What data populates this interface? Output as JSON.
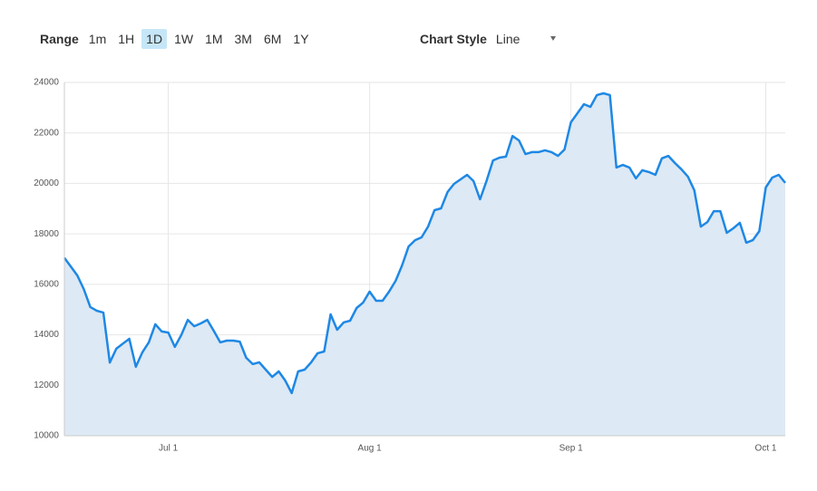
{
  "controls": {
    "range_label": "Range",
    "ranges": [
      "1m",
      "1H",
      "1D",
      "1W",
      "1M",
      "3M",
      "6M",
      "1Y"
    ],
    "chart_style_label": "Chart Style",
    "chart_style": "Line"
  },
  "chart_data": {
    "type": "area",
    "color": "#1e88e5",
    "fill": "#dde9f4",
    "grid": true,
    "x": [
      "Jun 15",
      "Jun 16",
      "Jun 17",
      "Jun 18",
      "Jun 19",
      "Jun 20",
      "Jun 21",
      "Jun 22",
      "Jun 23",
      "Jun 24",
      "Jun 25",
      "Jun 26",
      "Jun 27",
      "Jun 28",
      "Jun 29",
      "Jun 30",
      "Jul 1",
      "Jul 2",
      "Jul 3",
      "Jul 4",
      "Jul 5",
      "Jul 6",
      "Jul 7",
      "Jul 8",
      "Jul 9",
      "Jul 10",
      "Jul 11",
      "Jul 12",
      "Jul 13",
      "Jul 14",
      "Jul 15",
      "Jul 16",
      "Jul 17",
      "Jul 18",
      "Jul 19",
      "Jul 20",
      "Jul 21",
      "Jul 22",
      "Jul 23",
      "Jul 24",
      "Jul 25",
      "Jul 26",
      "Jul 27",
      "Jul 28",
      "Jul 29",
      "Jul 30",
      "Jul 31",
      "Aug 1",
      "Aug 2",
      "Aug 3",
      "Aug 4",
      "Aug 5",
      "Aug 6",
      "Aug 7",
      "Aug 8",
      "Aug 9",
      "Aug 10",
      "Aug 11",
      "Aug 12",
      "Aug 13",
      "Aug 14",
      "Aug 15",
      "Aug 16",
      "Aug 17",
      "Aug 18",
      "Aug 19",
      "Aug 20",
      "Aug 21",
      "Aug 22",
      "Aug 23",
      "Aug 24",
      "Aug 25",
      "Aug 26",
      "Aug 27",
      "Aug 28",
      "Aug 29",
      "Aug 30",
      "Aug 31",
      "Sep 1",
      "Sep 2",
      "Sep 3",
      "Sep 4",
      "Sep 5",
      "Sep 6",
      "Sep 7",
      "Sep 8",
      "Sep 9",
      "Sep 10",
      "Sep 11",
      "Sep 12",
      "Sep 13",
      "Sep 14",
      "Sep 15",
      "Sep 16",
      "Sep 17",
      "Sep 18",
      "Sep 19",
      "Sep 20",
      "Sep 21",
      "Sep 22",
      "Sep 23",
      "Sep 24",
      "Sep 25",
      "Sep 26",
      "Sep 27",
      "Sep 28",
      "Sep 29",
      "Sep 30",
      "Oct 1",
      "Oct 2",
      "Oct 3",
      "Oct 4"
    ],
    "values": [
      17050,
      16700,
      16350,
      15800,
      15100,
      14950,
      14880,
      12900,
      13450,
      13650,
      13840,
      12730,
      13300,
      13700,
      14420,
      14130,
      14090,
      13520,
      13990,
      14590,
      14340,
      14450,
      14590,
      14160,
      13700,
      13770,
      13770,
      13730,
      13090,
      12840,
      12910,
      12620,
      12330,
      12550,
      12190,
      11690,
      12550,
      12620,
      12910,
      13270,
      13340,
      14810,
      14200,
      14490,
      14560,
      15060,
      15280,
      15710,
      15350,
      15350,
      15710,
      16140,
      16750,
      17500,
      17750,
      17860,
      18290,
      18940,
      19010,
      19660,
      19980,
      20160,
      20340,
      20090,
      19370,
      20090,
      20910,
      21020,
      21060,
      21880,
      21700,
      21160,
      21240,
      21240,
      21310,
      21240,
      21090,
      21340,
      22420,
      22780,
      23140,
      23030,
      23500,
      23570,
      23500,
      20630,
      20730,
      20630,
      20200,
      20520,
      20450,
      20340,
      20990,
      21090,
      20810,
      20560,
      20270,
      19730,
      18290,
      18470,
      18900,
      18900,
      18040,
      18220,
      18440,
      17650,
      17750,
      18110,
      19840,
      20230,
      20340,
      20020
    ],
    "xticks": [
      "Jul 1",
      "Aug 1",
      "Sep 1",
      "Oct 1"
    ],
    "ylim": [
      10000,
      24000
    ],
    "yticks": [
      10000,
      12000,
      14000,
      16000,
      18000,
      20000,
      22000,
      24000
    ]
  }
}
